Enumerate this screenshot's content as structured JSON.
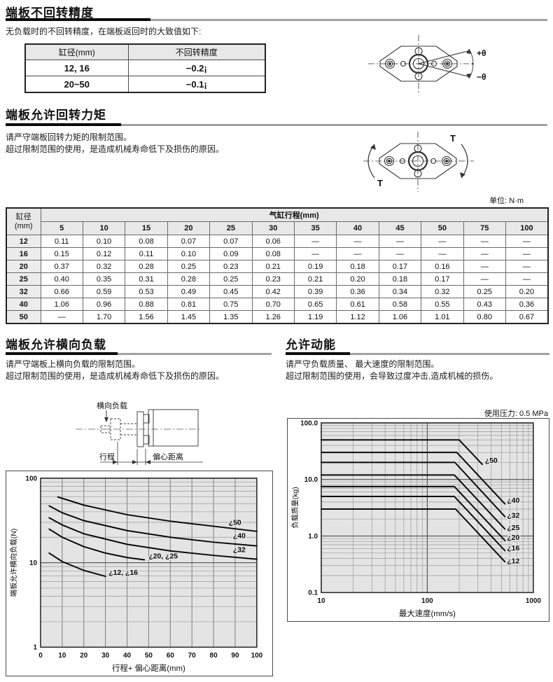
{
  "colors": {
    "section_rule_gray": "#a2a2a2",
    "section_rule_black": "#0a0a0a",
    "table_header_bg": "#e8e8e8",
    "bore_col_bg": "#ececec",
    "chart_plot_bg": "#e4e4e4",
    "grid_minor": "#9a9a9a",
    "grid_major": "#5a5a5a",
    "curve": "#0a0a0a"
  },
  "section1": {
    "title": "端板不回转精度",
    "intro": "无负载时的不回转精度，在端板返回时的大致值如下:",
    "table": {
      "headers": [
        "缸径(mm)",
        "不回转精度"
      ],
      "rows": [
        [
          "12, 16",
          "−0.2¡"
        ],
        [
          "20~50",
          "−0.1¡"
        ]
      ]
    },
    "diagram": {
      "plus_theta": "+θ",
      "minus_theta": "−θ"
    }
  },
  "section2": {
    "title": "端板允许回转力矩",
    "lines": [
      "请严守端板回转力矩的限制范围。",
      "超过限制范围的使用，是造成机械寿命低下及损伤的原因。"
    ],
    "unit_note": "单位: N·m",
    "diagram": {
      "torque_top": "T",
      "torque_bottom": "T"
    },
    "table": {
      "corner_header": [
        "缸径",
        "(mm)"
      ],
      "span_header": "气缸行程(mm)",
      "stroke_headers": [
        "5",
        "10",
        "15",
        "20",
        "25",
        "30",
        "35",
        "40",
        "45",
        "50",
        "75",
        "100"
      ],
      "rows": [
        {
          "bore": "12",
          "values": [
            "0.11",
            "0.10",
            "0.08",
            "0.07",
            "0.07",
            "0.06",
            "—",
            "—",
            "—",
            "—",
            "—",
            "—"
          ]
        },
        {
          "bore": "16",
          "values": [
            "0.15",
            "0.12",
            "0.11",
            "0.10",
            "0.09",
            "0.08",
            "—",
            "—",
            "—",
            "—",
            "—",
            "—"
          ]
        },
        {
          "bore": "20",
          "values": [
            "0.37",
            "0.32",
            "0.28",
            "0.25",
            "0.23",
            "0.21",
            "0.19",
            "0.18",
            "0.17",
            "0.16",
            "—",
            "—"
          ]
        },
        {
          "bore": "25",
          "values": [
            "0.40",
            "0.35",
            "0.31",
            "0.28",
            "0.25",
            "0.23",
            "0.21",
            "0.20",
            "0.18",
            "0.17",
            "—",
            "—"
          ]
        },
        {
          "bore": "32",
          "values": [
            "0.66",
            "0.59",
            "0.53",
            "0.49",
            "0.45",
            "0.42",
            "0.39",
            "0.36",
            "0.34",
            "0.32",
            "0.25",
            "0.20"
          ]
        },
        {
          "bore": "40",
          "values": [
            "1.06",
            "0.96",
            "0.88",
            "0.81",
            "0.75",
            "0.70",
            "0.65",
            "0.61",
            "0.58",
            "0.55",
            "0.43",
            "0.36"
          ]
        },
        {
          "bore": "50",
          "values": [
            "—",
            "1.70",
            "1.56",
            "1.45",
            "1.35",
            "1.26",
            "1.19",
            "1.12",
            "1.06",
            "1.01",
            "0.80",
            "0.67"
          ]
        }
      ]
    }
  },
  "section3": {
    "title": "端板允许横向负载",
    "lines": [
      "请严守端板上横向负载的限制范围。",
      "超过限制范围的使用，是造成机械寿命低下及损伤的原因。"
    ],
    "diagram": {
      "lateral_load": "横向负载",
      "stroke": "行程",
      "eccentric": "偏心距离"
    }
  },
  "section4": {
    "title": "允许动能",
    "lines": [
      "请严守负载质量、 最大速度的限制范围。",
      "超过限制范围的使用，会导致过度冲击,造成机械的损伤。"
    ],
    "pressure_note": "使用压力: 0.5 MPa"
  },
  "chart_data": [
    {
      "id": "lateral-load-chart",
      "type": "line",
      "title": "",
      "xlabel": "行程+ 偏心距离(mm)",
      "ylabel": "端板允许横向负载(N)",
      "xscale": "linear",
      "yscale": "log",
      "xlim": [
        0,
        100
      ],
      "ylim": [
        1,
        100
      ],
      "grid": true,
      "legend": "inline-labels",
      "bg": "#e4e4e4",
      "xticks": [
        [
          0,
          "0"
        ],
        [
          10,
          "10"
        ],
        [
          20,
          "20"
        ],
        [
          30,
          "30"
        ],
        [
          40,
          "40"
        ],
        [
          50,
          "50"
        ],
        [
          60,
          "60"
        ],
        [
          70,
          "70"
        ],
        [
          80,
          "80"
        ],
        [
          90,
          "90"
        ],
        [
          100,
          "100"
        ]
      ],
      "yticks": [
        [
          1,
          "1"
        ],
        [
          10,
          "10"
        ],
        [
          100,
          "100"
        ]
      ],
      "series": [
        {
          "name": "¿50",
          "points": [
            [
              8,
              60
            ],
            [
              20,
              48
            ],
            [
              40,
              37
            ],
            [
              60,
              31
            ],
            [
              80,
              27
            ],
            [
              100,
              23.5
            ]
          ],
          "label_at": [
            87,
            28
          ]
        },
        {
          "name": "¿40",
          "points": [
            [
              4,
              47
            ],
            [
              10,
              39
            ],
            [
              20,
              31.5
            ],
            [
              40,
              24
            ],
            [
              60,
              20
            ],
            [
              80,
              17.5
            ],
            [
              100,
              15.8
            ]
          ],
          "label_at": [
            89,
            19.5
          ]
        },
        {
          "name": "¿32",
          "points": [
            [
              4,
              34
            ],
            [
              10,
              28
            ],
            [
              20,
              22
            ],
            [
              40,
              16.5
            ],
            [
              60,
              13.8
            ],
            [
              80,
              12.2
            ],
            [
              100,
              11
            ]
          ],
          "label_at": [
            89,
            13.4
          ]
        },
        {
          "name": "¿20, ¿25",
          "points": [
            [
              4,
              25
            ],
            [
              10,
              20
            ],
            [
              20,
              15.5
            ],
            [
              30,
              13
            ],
            [
              40,
              11.5
            ],
            [
              48,
              10.8
            ]
          ],
          "label_at": [
            50,
            11.2
          ]
        },
        {
          "name": "¿12, ¿16",
          "points": [
            [
              4,
              13
            ],
            [
              10,
              10.3
            ],
            [
              20,
              8.1
            ],
            [
              30,
              6.9
            ]
          ],
          "label_at": [
            31.5,
            7.2
          ]
        }
      ]
    },
    {
      "id": "kinetic-energy-chart",
      "type": "line",
      "title": "",
      "xlabel": "最大速度(mm/s)",
      "ylabel": "负载质量(kg)",
      "xscale": "log",
      "yscale": "log",
      "xlim": [
        10,
        1000
      ],
      "ylim": [
        0.1,
        100
      ],
      "grid": true,
      "legend": "inline-labels",
      "bg": "#e4e4e4",
      "xticks": [
        [
          10,
          "10"
        ],
        [
          100,
          "100"
        ],
        [
          1000,
          "1000"
        ]
      ],
      "yticks": [
        [
          0.1,
          "0.1"
        ],
        [
          1,
          "1.0"
        ],
        [
          10,
          "10.0"
        ],
        [
          100,
          "100.0"
        ]
      ],
      "series": [
        {
          "name": "¿50",
          "points": [
            [
              10,
              50
            ],
            [
              200,
              50
            ],
            [
              330,
              18.5
            ]
          ],
          "label_at": [
            350,
            19.5
          ]
        },
        {
          "name": "¿40",
          "points": [
            [
              10,
              30
            ],
            [
              190,
              30
            ],
            [
              540,
              3.7
            ]
          ],
          "label_at": [
            565,
            3.85
          ]
        },
        {
          "name": "¿32",
          "points": [
            [
              10,
              20
            ],
            [
              182,
              20
            ],
            [
              540,
              2.2
            ]
          ],
          "label_at": [
            565,
            2.1
          ]
        },
        {
          "name": "¿25",
          "points": [
            [
              10,
              12
            ],
            [
              180,
              12
            ],
            [
              540,
              1.33
            ]
          ],
          "label_at": [
            565,
            1.28
          ]
        },
        {
          "name": "¿20",
          "points": [
            [
              10,
              7.5
            ],
            [
              180,
              7.5
            ],
            [
              540,
              0.83
            ]
          ],
          "label_at": [
            565,
            0.86
          ]
        },
        {
          "name": "¿16",
          "points": [
            [
              10,
              5
            ],
            [
              180,
              5
            ],
            [
              540,
              0.55
            ]
          ],
          "label_at": [
            565,
            0.56
          ]
        },
        {
          "name": "¿12",
          "points": [
            [
              10,
              3
            ],
            [
              185,
              3
            ],
            [
              540,
              0.35
            ]
          ],
          "label_at": [
            565,
            0.33
          ]
        }
      ]
    }
  ]
}
